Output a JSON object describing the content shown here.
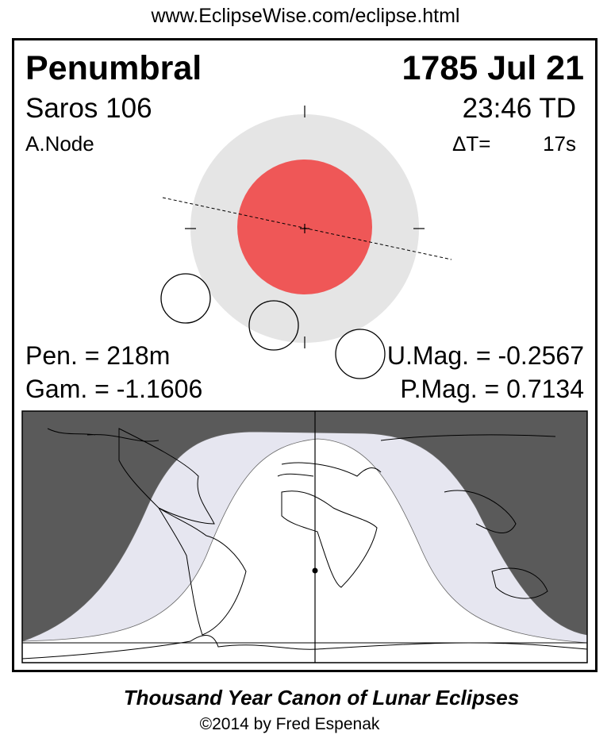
{
  "url": "www.EclipseWise.com/eclipse.html",
  "header": {
    "eclipse_type": "Penumbral",
    "date": "1785 Jul 21",
    "saros": "Saros 106",
    "time": "23:46 TD",
    "node": "A.Node",
    "delta_t_label": "ΔT=",
    "delta_t_value": "17s"
  },
  "stats": {
    "pen_duration": "Pen. = 218m",
    "gamma": "Gam. = -1.1606",
    "umbral_mag": "U.Mag. = -0.2567",
    "penumbral_mag": "P.Mag. = 0.7134"
  },
  "colors": {
    "umbra": "#ef5757",
    "penumbra": "#e5e5e5",
    "night_side": "#5a5a5a",
    "penumbral_visibility": "#e6e6f0",
    "full_visibility": "#ffffff"
  },
  "footer": {
    "title": "Thousand Year Canon of Lunar Eclipses",
    "copyright": "©2014 by Fred Espenak"
  }
}
